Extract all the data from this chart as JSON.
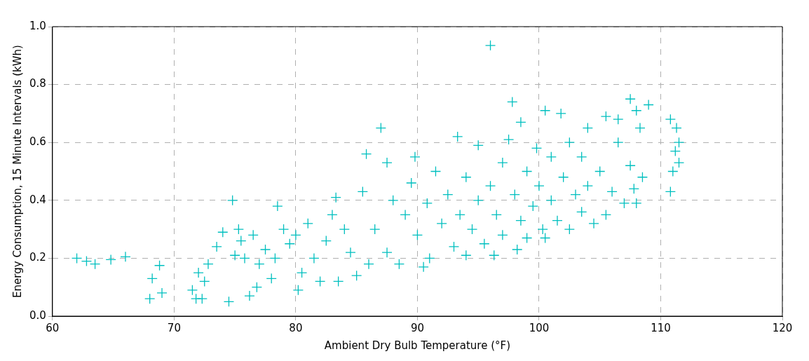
{
  "chart_data": {
    "type": "scatter",
    "xlabel": "Ambient Dry Bulb Temperature (°F)",
    "ylabel": "Energy Consumption, 15 Minute Intervals (kWh)",
    "xlim": [
      60,
      120
    ],
    "xticks": [
      60,
      70,
      80,
      90,
      100,
      110,
      120
    ],
    "ylim": [
      0,
      1
    ],
    "yticks": [
      {
        "value": 0,
        "label": "0.0"
      },
      {
        "value": 0.2,
        "label": "0.2"
      },
      {
        "value": 0.4,
        "label": "0.4"
      },
      {
        "value": 0.6,
        "label": "0.6"
      },
      {
        "value": 0.8,
        "label": "0.8"
      },
      {
        "value": 1,
        "label": "1.0"
      }
    ],
    "grid": true,
    "marker": "cross",
    "legend": false,
    "series": [
      {
        "color": "#00bfbf",
        "x": [
          62,
          62.8,
          63.5,
          64.8,
          66,
          68,
          68.2,
          68.8,
          69,
          71.5,
          71.8,
          72,
          72.3,
          72.5,
          72.8,
          73.5,
          74,
          74.5,
          74.8,
          75,
          75.3,
          75.5,
          75.8,
          76.2,
          76.5,
          76.8,
          77,
          77.5,
          78,
          78.3,
          78.5,
          79,
          79.5,
          80,
          80.2,
          80.5,
          81,
          81.5,
          82,
          82.5,
          83,
          83.3,
          83.5,
          84,
          84.5,
          85,
          85.5,
          85.8,
          86,
          86.5,
          87,
          87.5,
          87.5,
          88,
          88.5,
          89,
          89.5,
          89.8,
          90,
          90.5,
          90.8,
          91,
          91.5,
          92,
          92.5,
          93,
          93.3,
          93.5,
          94,
          94,
          94.5,
          95,
          95,
          95.5,
          96,
          96,
          96.3,
          96.5,
          97,
          97,
          97.5,
          97.8,
          98,
          98.2,
          98.5,
          98.5,
          99,
          99,
          99.5,
          99.8,
          100,
          100.3,
          100.5,
          100.5,
          101,
          101,
          101.5,
          101.8,
          102,
          102.5,
          102.5,
          103,
          103.5,
          103.5,
          104,
          104,
          104.5,
          105,
          105.5,
          105.5,
          106,
          106.5,
          106.5,
          107,
          107.5,
          107.5,
          107.8,
          108,
          108,
          108.3,
          108.5,
          109,
          110.8,
          110.8,
          111,
          111.2,
          111.3,
          111.5,
          111.5
        ],
        "values": [
          0.2,
          0.19,
          0.18,
          0.195,
          0.205,
          0.06,
          0.13,
          0.175,
          0.08,
          0.09,
          0.06,
          0.15,
          0.06,
          0.12,
          0.18,
          0.24,
          0.29,
          0.05,
          0.4,
          0.21,
          0.3,
          0.26,
          0.2,
          0.07,
          0.28,
          0.1,
          0.18,
          0.23,
          0.13,
          0.2,
          0.38,
          0.3,
          0.25,
          0.28,
          0.09,
          0.15,
          0.32,
          0.2,
          0.12,
          0.26,
          0.35,
          0.41,
          0.12,
          0.3,
          0.22,
          0.14,
          0.43,
          0.56,
          0.18,
          0.3,
          0.65,
          0.53,
          0.22,
          0.4,
          0.18,
          0.35,
          0.46,
          0.55,
          0.28,
          0.17,
          0.39,
          0.2,
          0.5,
          0.32,
          0.42,
          0.24,
          0.62,
          0.35,
          0.21,
          0.48,
          0.3,
          0.59,
          0.4,
          0.25,
          0.935,
          0.45,
          0.21,
          0.35,
          0.53,
          0.28,
          0.61,
          0.74,
          0.42,
          0.23,
          0.67,
          0.33,
          0.5,
          0.27,
          0.38,
          0.58,
          0.45,
          0.3,
          0.71,
          0.27,
          0.55,
          0.4,
          0.33,
          0.7,
          0.48,
          0.6,
          0.3,
          0.42,
          0.55,
          0.36,
          0.65,
          0.45,
          0.32,
          0.5,
          0.69,
          0.35,
          0.43,
          0.6,
          0.68,
          0.39,
          0.75,
          0.52,
          0.44,
          0.71,
          0.39,
          0.65,
          0.48,
          0.73,
          0.43,
          0.68,
          0.5,
          0.57,
          0.65,
          0.53,
          0.6
        ]
      }
    ]
  }
}
